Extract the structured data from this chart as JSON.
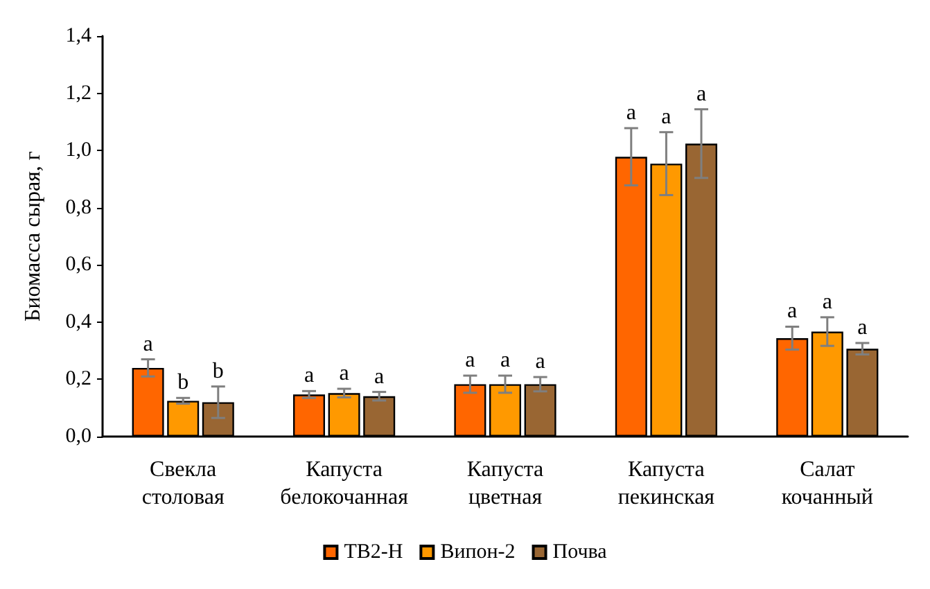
{
  "chart_data": {
    "type": "bar",
    "ylabel": "Биомасса сырая, г",
    "categories": [
      "Свекла\nстоловая",
      "Капуста\nбелокочанная",
      "Капуста\nцветная",
      "Капуста\nпекинская",
      "Салат\nкочанный"
    ],
    "series": [
      {
        "name": "ТВ2-Н",
        "color": "#ff6600",
        "values": [
          0.24,
          0.147,
          0.183,
          0.978,
          0.344
        ],
        "errors": [
          0.03,
          0.012,
          0.03,
          0.1,
          0.04
        ],
        "value_labels": [
          "a",
          "a",
          "a",
          "a",
          "a"
        ]
      },
      {
        "name": "Випон-2",
        "color": "#ff9900",
        "values": [
          0.125,
          0.152,
          0.183,
          0.954,
          0.367
        ],
        "errors": [
          0.01,
          0.015,
          0.03,
          0.11,
          0.05
        ],
        "value_labels": [
          "b",
          "a",
          "a",
          "a",
          "a"
        ]
      },
      {
        "name": "Почва",
        "color": "#996633",
        "values": [
          0.12,
          0.141,
          0.183,
          1.024,
          0.307
        ],
        "errors": [
          0.055,
          0.015,
          0.025,
          0.12,
          0.02
        ],
        "value_labels": [
          "b",
          "a",
          "a",
          "a",
          "a"
        ]
      }
    ],
    "ylim": [
      0,
      1.4
    ],
    "yticks": [
      {
        "value": 0,
        "label": "0,0"
      },
      {
        "value": 0.2,
        "label": "0,2"
      },
      {
        "value": 0.4,
        "label": "0,4"
      },
      {
        "value": 0.6,
        "label": "0,6"
      },
      {
        "value": 0.8,
        "label": "0,8"
      },
      {
        "value": 1,
        "label": "1,0"
      },
      {
        "value": 1.2,
        "label": "1,2"
      },
      {
        "value": 1.4,
        "label": "1,4"
      }
    ],
    "grid": false,
    "legend": "bottom"
  }
}
